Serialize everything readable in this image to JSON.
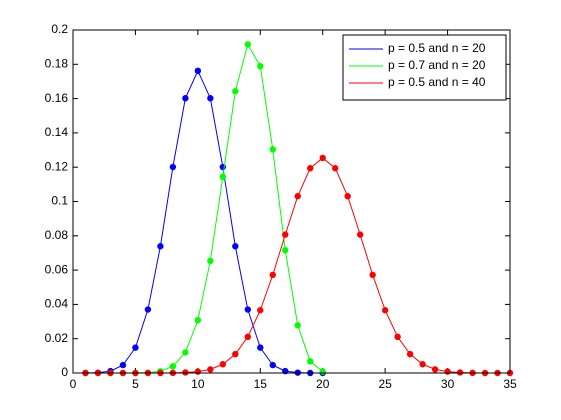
{
  "chart_data": {
    "type": "line",
    "xlim": [
      0,
      35
    ],
    "xticks": [
      0,
      5,
      10,
      15,
      20,
      25,
      30,
      35
    ],
    "ylim": [
      0,
      0.2
    ],
    "yticks": [
      0,
      0.02,
      0.04,
      0.06,
      0.08,
      0.1,
      0.12,
      0.14,
      0.16,
      0.18,
      0.2
    ],
    "legend": "top-right",
    "series": [
      {
        "name": "p = 0.5 and n = 20",
        "color": "#0000ff",
        "x": [
          1,
          2,
          3,
          4,
          5,
          6,
          7,
          8,
          9,
          10,
          11,
          12,
          13,
          14,
          15,
          16,
          17,
          18,
          19,
          20
        ],
        "values": [
          0,
          0.0002,
          0.0011,
          0.0046,
          0.0148,
          0.037,
          0.0739,
          0.1201,
          0.1602,
          0.1762,
          0.1602,
          0.1201,
          0.0739,
          0.037,
          0.0148,
          0.0046,
          0.0011,
          0.0002,
          0,
          0
        ]
      },
      {
        "name": "p = 0.7 and n = 20",
        "color": "#00ff00",
        "x": [
          1,
          2,
          3,
          4,
          5,
          6,
          7,
          8,
          9,
          10,
          11,
          12,
          13,
          14,
          15,
          16,
          17,
          18,
          19,
          20
        ],
        "values": [
          0,
          0,
          0,
          0,
          0,
          0.0002,
          0.001,
          0.0039,
          0.012,
          0.0308,
          0.0654,
          0.1144,
          0.1643,
          0.1916,
          0.1789,
          0.1304,
          0.0716,
          0.0278,
          0.0068,
          0.0008
        ]
      },
      {
        "name": "p = 0.5 and n = 40",
        "color": "#ff0000",
        "x": [
          1,
          2,
          3,
          4,
          5,
          6,
          7,
          8,
          9,
          10,
          11,
          12,
          13,
          14,
          15,
          16,
          17,
          18,
          19,
          20,
          21,
          22,
          23,
          24,
          25,
          26,
          27,
          28,
          29,
          30,
          31,
          32,
          33,
          34,
          35
        ],
        "values": [
          0,
          0,
          0,
          0,
          0,
          0,
          0,
          0.0001,
          0.0003,
          0.0008,
          0.0021,
          0.0051,
          0.011,
          0.0211,
          0.0366,
          0.0572,
          0.0807,
          0.1031,
          0.1194,
          0.1254,
          0.1194,
          0.1031,
          0.0807,
          0.0572,
          0.0366,
          0.0211,
          0.011,
          0.0051,
          0.0021,
          0.0008,
          0.0003,
          0.0001,
          0,
          0,
          0
        ]
      }
    ]
  }
}
